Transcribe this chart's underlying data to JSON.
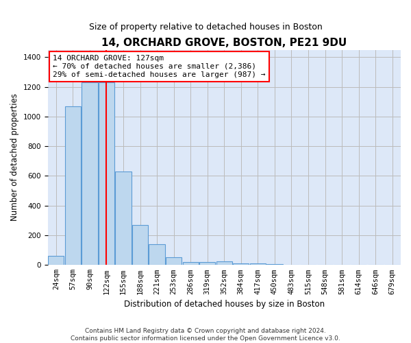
{
  "title": "14, ORCHARD GROVE, BOSTON, PE21 9DU",
  "subtitle": "Size of property relative to detached houses in Boston",
  "xlabel": "Distribution of detached houses by size in Boston",
  "ylabel": "Number of detached properties",
  "footnote": "Contains HM Land Registry data © Crown copyright and database right 2024.\nContains public sector information licensed under the Open Government Licence v3.0.",
  "bar_labels": [
    "24sqm",
    "57sqm",
    "90sqm",
    "122sqm",
    "155sqm",
    "188sqm",
    "221sqm",
    "253sqm",
    "286sqm",
    "319sqm",
    "352sqm",
    "384sqm",
    "417sqm",
    "450sqm",
    "483sqm",
    "515sqm",
    "548sqm",
    "581sqm",
    "614sqm",
    "646sqm",
    "679sqm"
  ],
  "bar_values": [
    60,
    1070,
    1230,
    1230,
    630,
    270,
    140,
    50,
    20,
    20,
    25,
    10,
    10,
    5,
    0,
    0,
    0,
    0,
    0,
    0,
    0
  ],
  "bar_color": "#bdd7ee",
  "bar_edge_color": "#5b9bd5",
  "vline_x": 3,
  "vline_color": "red",
  "annotation_box_text": "14 ORCHARD GROVE: 127sqm\n← 70% of detached houses are smaller (2,386)\n29% of semi-detached houses are larger (987) →",
  "annotation_fontsize": 8,
  "ylim": [
    0,
    1450
  ],
  "yticks": [
    0,
    200,
    400,
    600,
    800,
    1000,
    1200,
    1400
  ],
  "background_color": "#dde8f8",
  "grid_color": "#bbbbbb",
  "title_fontsize": 11,
  "subtitle_fontsize": 9,
  "axis_label_fontsize": 8.5,
  "tick_fontsize": 7.5,
  "footnote_fontsize": 6.5
}
